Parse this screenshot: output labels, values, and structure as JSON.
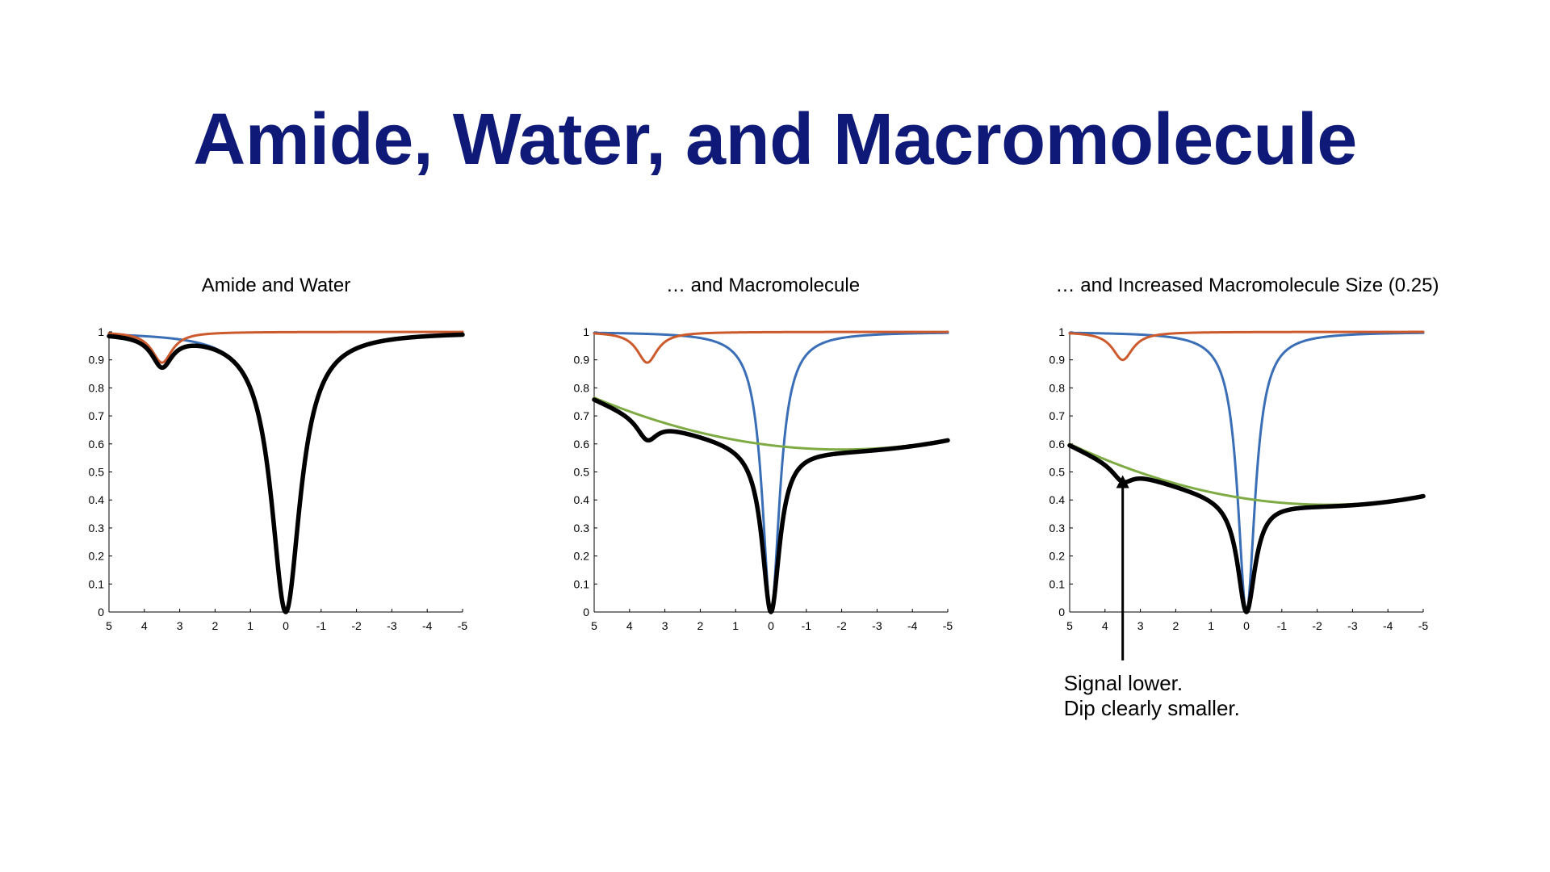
{
  "slide": {
    "title": "Amide, Water, and Macromolecule"
  },
  "colors": {
    "water": "#3a6eb6",
    "amide": "#cc5a2c",
    "macromolecule": "#7fab45",
    "total": "#000000",
    "title": "#0f1a78"
  },
  "chart_data": [
    {
      "type": "line",
      "title": "Amide and Water",
      "xlim": [
        5,
        -5
      ],
      "ylim": [
        0,
        1
      ],
      "xticks": [
        "5",
        "4",
        "3",
        "2",
        "1",
        "0",
        "-1",
        "-2",
        "-3",
        "-4",
        "-5"
      ],
      "yticks": [
        "0",
        "0.1",
        "0.2",
        "0.3",
        "0.4",
        "0.5",
        "0.6",
        "0.7",
        "0.8",
        "0.9",
        "1"
      ],
      "series": [
        {
          "name": "water",
          "role": "water",
          "values_desc": "Lorentzian dip to 0 at 0 ppm, width 1.0"
        },
        {
          "name": "amide",
          "role": "amide",
          "dip_center": 3.5,
          "dip_depth": 0.11
        },
        {
          "name": "total",
          "role": "total"
        }
      ],
      "water_width": 1.0,
      "macromolecule": null
    },
    {
      "type": "line",
      "title": "… and Macromolecule",
      "xlim": [
        5,
        -5
      ],
      "ylim": [
        0,
        1
      ],
      "xticks": [
        "5",
        "4",
        "3",
        "2",
        "1",
        "0",
        "-1",
        "-2",
        "-3",
        "-4",
        "-5"
      ],
      "yticks": [
        "0",
        "0.1",
        "0.2",
        "0.3",
        "0.4",
        "0.5",
        "0.6",
        "0.7",
        "0.8",
        "0.9",
        "1"
      ],
      "series": [
        {
          "name": "water",
          "role": "water"
        },
        {
          "name": "amide",
          "role": "amide",
          "dip_center": 3.5,
          "dip_depth": 0.11
        },
        {
          "name": "macromolecule",
          "role": "macromolecule"
        },
        {
          "name": "total",
          "role": "total"
        }
      ],
      "water_width": 0.6,
      "macromolecule": {
        "min_value": 0.58,
        "center": -2.0,
        "left_value": 0.765,
        "right_value": 0.615
      }
    },
    {
      "type": "line",
      "title": "… and Increased Macromolecule Size (0.25)",
      "xlim": [
        5,
        -5
      ],
      "ylim": [
        0,
        1
      ],
      "xticks": [
        "5",
        "4",
        "3",
        "2",
        "1",
        "0",
        "-1",
        "-2",
        "-3",
        "-4",
        "-5"
      ],
      "yticks": [
        "0",
        "0.1",
        "0.2",
        "0.3",
        "0.4",
        "0.5",
        "0.6",
        "0.7",
        "0.8",
        "0.9",
        "1"
      ],
      "series": [
        {
          "name": "water",
          "role": "water"
        },
        {
          "name": "amide",
          "role": "amide",
          "dip_center": 3.5,
          "dip_depth": 0.1
        },
        {
          "name": "macromolecule",
          "role": "macromolecule"
        },
        {
          "name": "total",
          "role": "total"
        }
      ],
      "water_width": 0.6,
      "macromolecule": {
        "min_value": 0.383,
        "center": -2.3,
        "left_value": 0.6,
        "right_value": 0.415
      },
      "annotation": {
        "lines": [
          "Signal lower.",
          "Dip clearly smaller."
        ],
        "arrow_x": 3.5,
        "arrow_y_top": 0.5
      }
    }
  ]
}
